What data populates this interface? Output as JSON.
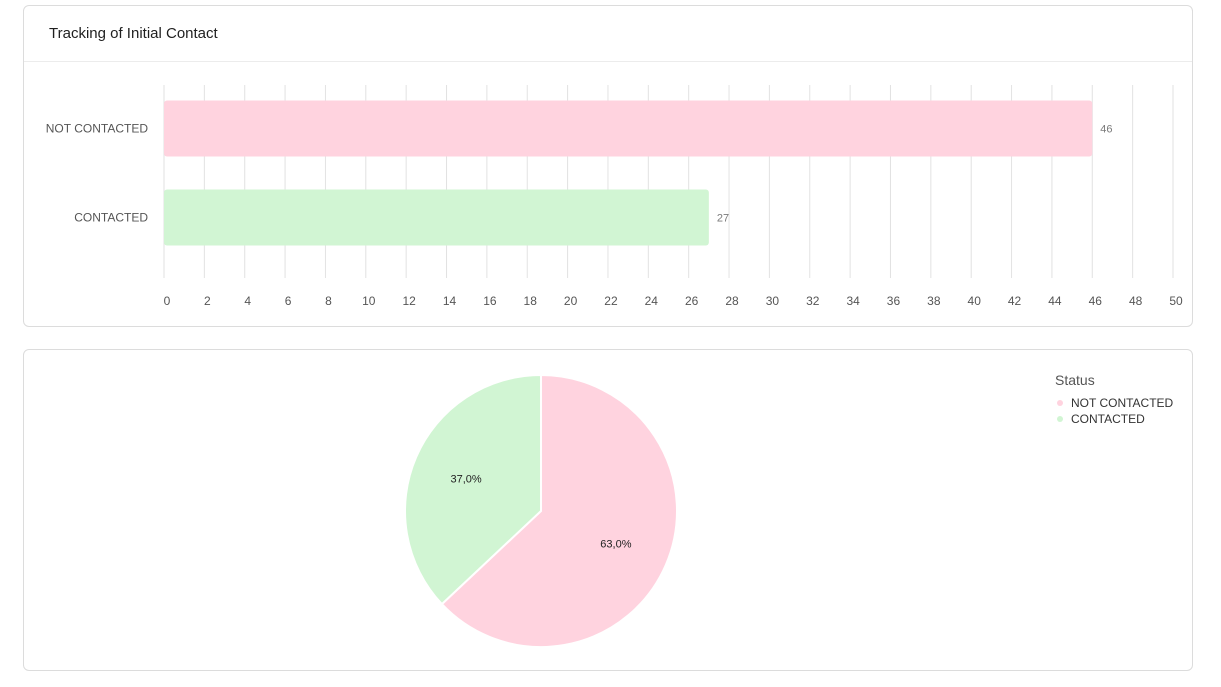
{
  "bar_card": {
    "title": "Tracking of Initial Contact"
  },
  "pie_card": {
    "legend_title": "Status"
  },
  "colors": {
    "not_contacted": "#ffd3df",
    "contacted": "#d1f5d3",
    "grid": "#e2e2e2",
    "axis_text": "#555555",
    "value_text": "#7a7a7a"
  },
  "chart_data": [
    {
      "type": "bar",
      "orientation": "horizontal",
      "title": "Tracking of Initial Contact",
      "categories": [
        "NOT CONTACTED",
        "CONTACTED"
      ],
      "values": [
        46,
        27
      ],
      "xlim": [
        0,
        50
      ],
      "xticks": [
        0,
        2,
        4,
        6,
        8,
        10,
        12,
        14,
        16,
        18,
        20,
        22,
        24,
        26,
        28,
        30,
        32,
        34,
        36,
        38,
        40,
        42,
        44,
        46,
        48,
        50
      ],
      "data_labels": [
        "46",
        "27"
      ],
      "grid": true
    },
    {
      "type": "pie",
      "legend_title": "Status",
      "legend_position": "top-right",
      "labels": [
        "NOT CONTACTED",
        "CONTACTED"
      ],
      "values": [
        63.0,
        37.0
      ],
      "slice_labels": [
        "63,0%",
        "37,0%"
      ]
    }
  ]
}
